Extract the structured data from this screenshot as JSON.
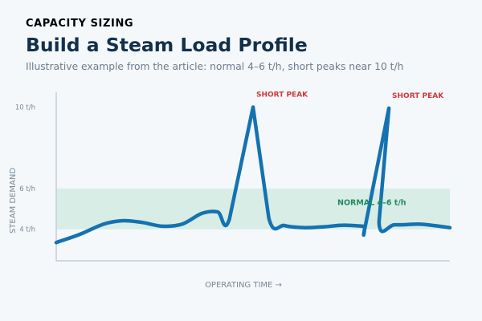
{
  "header": {
    "eyebrow": "CAPACITY SIZING",
    "title": "Build a Steam Load Profile",
    "subtitle": "Illustrative example from the article: normal 4–6 t/h, short peaks near 10 t/h"
  },
  "colors": {
    "eyebrow": "#1f8a63",
    "line": "#1572b0",
    "band": "#d8ede6",
    "band_label": "#1f8a63",
    "peak_label": "#d0393b",
    "axis": "#c3ccd6"
  },
  "chart_data": {
    "type": "line",
    "xlabel": "OPERATING TIME →",
    "ylabel": "STEAM DEMAND",
    "ylim": [
      2.45,
      10.73
    ],
    "xlim": [
      0,
      100
    ],
    "y_ticks": [
      {
        "value": 10,
        "label": "10 t/h"
      },
      {
        "value": 6,
        "label": "6 t/h"
      },
      {
        "value": 4,
        "label": "4 t/h"
      }
    ],
    "band": {
      "from": 4,
      "to": 6,
      "label": "NORMAL 4–6 t/h"
    },
    "grid": false,
    "series": [
      {
        "points": [
          [
            0,
            3.35
          ],
          [
            6,
            3.75
          ],
          [
            12,
            4.25
          ],
          [
            17,
            4.42
          ],
          [
            22,
            4.33
          ],
          [
            27,
            4.15
          ],
          [
            32,
            4.25
          ],
          [
            37,
            4.78
          ],
          [
            41,
            4.85
          ],
          [
            44,
            4.5
          ],
          [
            50,
            10.0
          ],
          [
            54,
            4.55
          ],
          [
            58,
            4.18
          ],
          [
            63,
            4.08
          ],
          [
            68,
            4.12
          ],
          [
            73,
            4.2
          ],
          [
            78,
            4.15
          ],
          [
            78.5,
            4.15
          ],
          [
            84.5,
            9.95
          ],
          [
            82,
            4.35
          ],
          [
            86,
            4.22
          ],
          [
            92,
            4.25
          ],
          [
            96,
            4.18
          ],
          [
            100,
            4.08
          ]
        ]
      }
    ],
    "annotations": [
      {
        "text": "SHORT PEAK",
        "x": 50,
        "y": 10
      },
      {
        "text": "SHORT PEAK",
        "x": 84.5,
        "y": 9.95
      }
    ]
  }
}
